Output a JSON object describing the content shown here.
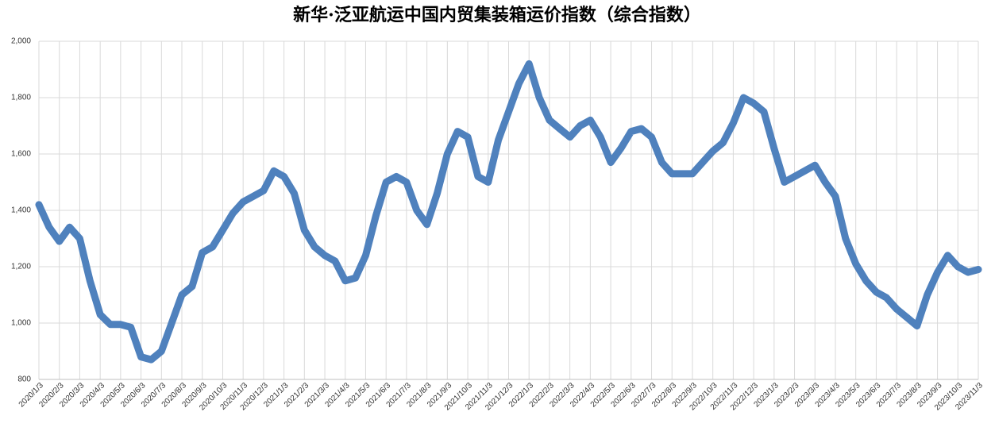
{
  "chart_data": {
    "type": "line",
    "title": "新华·泛亚航运中国内贸集装箱运价指数（综合指数）",
    "categories": [
      "2020/1/3",
      null,
      "2020/2/3",
      null,
      "2020/3/3",
      null,
      "2020/4/3",
      null,
      "2020/5/3",
      null,
      "2020/6/3",
      null,
      "2020/7/3",
      null,
      "2020/8/3",
      null,
      "2020/9/3",
      null,
      "2020/10/3",
      null,
      "2020/11/3",
      null,
      "2020/12/3",
      null,
      "2021/1/3",
      null,
      "2021/2/3",
      null,
      "2021/3/3",
      null,
      "2021/4/3",
      null,
      "2021/5/3",
      null,
      "2021/6/3",
      null,
      "2021/7/3",
      null,
      "2021/8/3",
      null,
      "2021/9/3",
      null,
      "2021/10/3",
      null,
      "2021/11/3",
      null,
      "2021/12/3",
      null,
      "2022/1/3",
      null,
      "2022/2/3",
      null,
      "2022/3/3",
      null,
      "2022/4/3",
      null,
      "2022/5/3",
      null,
      "2022/6/3",
      null,
      "2022/7/3",
      null,
      "2022/8/3",
      null,
      "2022/9/3",
      null,
      "2022/10/3",
      null,
      "2022/11/3",
      null,
      "2022/12/3",
      null,
      "2023/1/3",
      null,
      "2023/2/3",
      null,
      "2023/3/3",
      null,
      "2023/4/3",
      null,
      "2023/5/3",
      null,
      "2023/6/3",
      null,
      "2023/7/3",
      null,
      "2023/8/3",
      null,
      "2023/9/3",
      null,
      "2023/10/3",
      null,
      "2023/11/3"
    ],
    "series": [
      {
        "name": "综合指数",
        "color": "#4f81bd",
        "values": [
          1420,
          1340,
          1290,
          1340,
          1300,
          1150,
          1030,
          995,
          995,
          985,
          880,
          870,
          900,
          1000,
          1100,
          1130,
          1250,
          1270,
          1330,
          1390,
          1430,
          1450,
          1470,
          1540,
          1520,
          1460,
          1330,
          1270,
          1240,
          1220,
          1150,
          1160,
          1240,
          1380,
          1500,
          1520,
          1500,
          1400,
          1350,
          1460,
          1600,
          1680,
          1660,
          1520,
          1500,
          1650,
          1750,
          1850,
          1920,
          1800,
          1720,
          1690,
          1660,
          1700,
          1720,
          1660,
          1570,
          1620,
          1680,
          1690,
          1660,
          1570,
          1530,
          1530,
          1530,
          1570,
          1610,
          1640,
          1710,
          1800,
          1780,
          1750,
          1620,
          1500,
          1520,
          1540,
          1560,
          1500,
          1450,
          1300,
          1210,
          1150,
          1110,
          1090,
          1050,
          1020,
          990,
          1100,
          1180,
          1240,
          1200,
          1180,
          1190
        ]
      }
    ],
    "ylim": [
      800,
      2000
    ],
    "yticks": [
      800,
      {
        "value": 1000,
        "label": "1,000"
      },
      {
        "value": 1200,
        "label": "1,200"
      },
      {
        "value": 1400,
        "label": "1,400"
      },
      {
        "value": 1600,
        "label": "1,600"
      },
      {
        "value": 1800,
        "label": "1,800"
      },
      {
        "value": 2000,
        "label": "2,000"
      }
    ],
    "grid": true
  }
}
